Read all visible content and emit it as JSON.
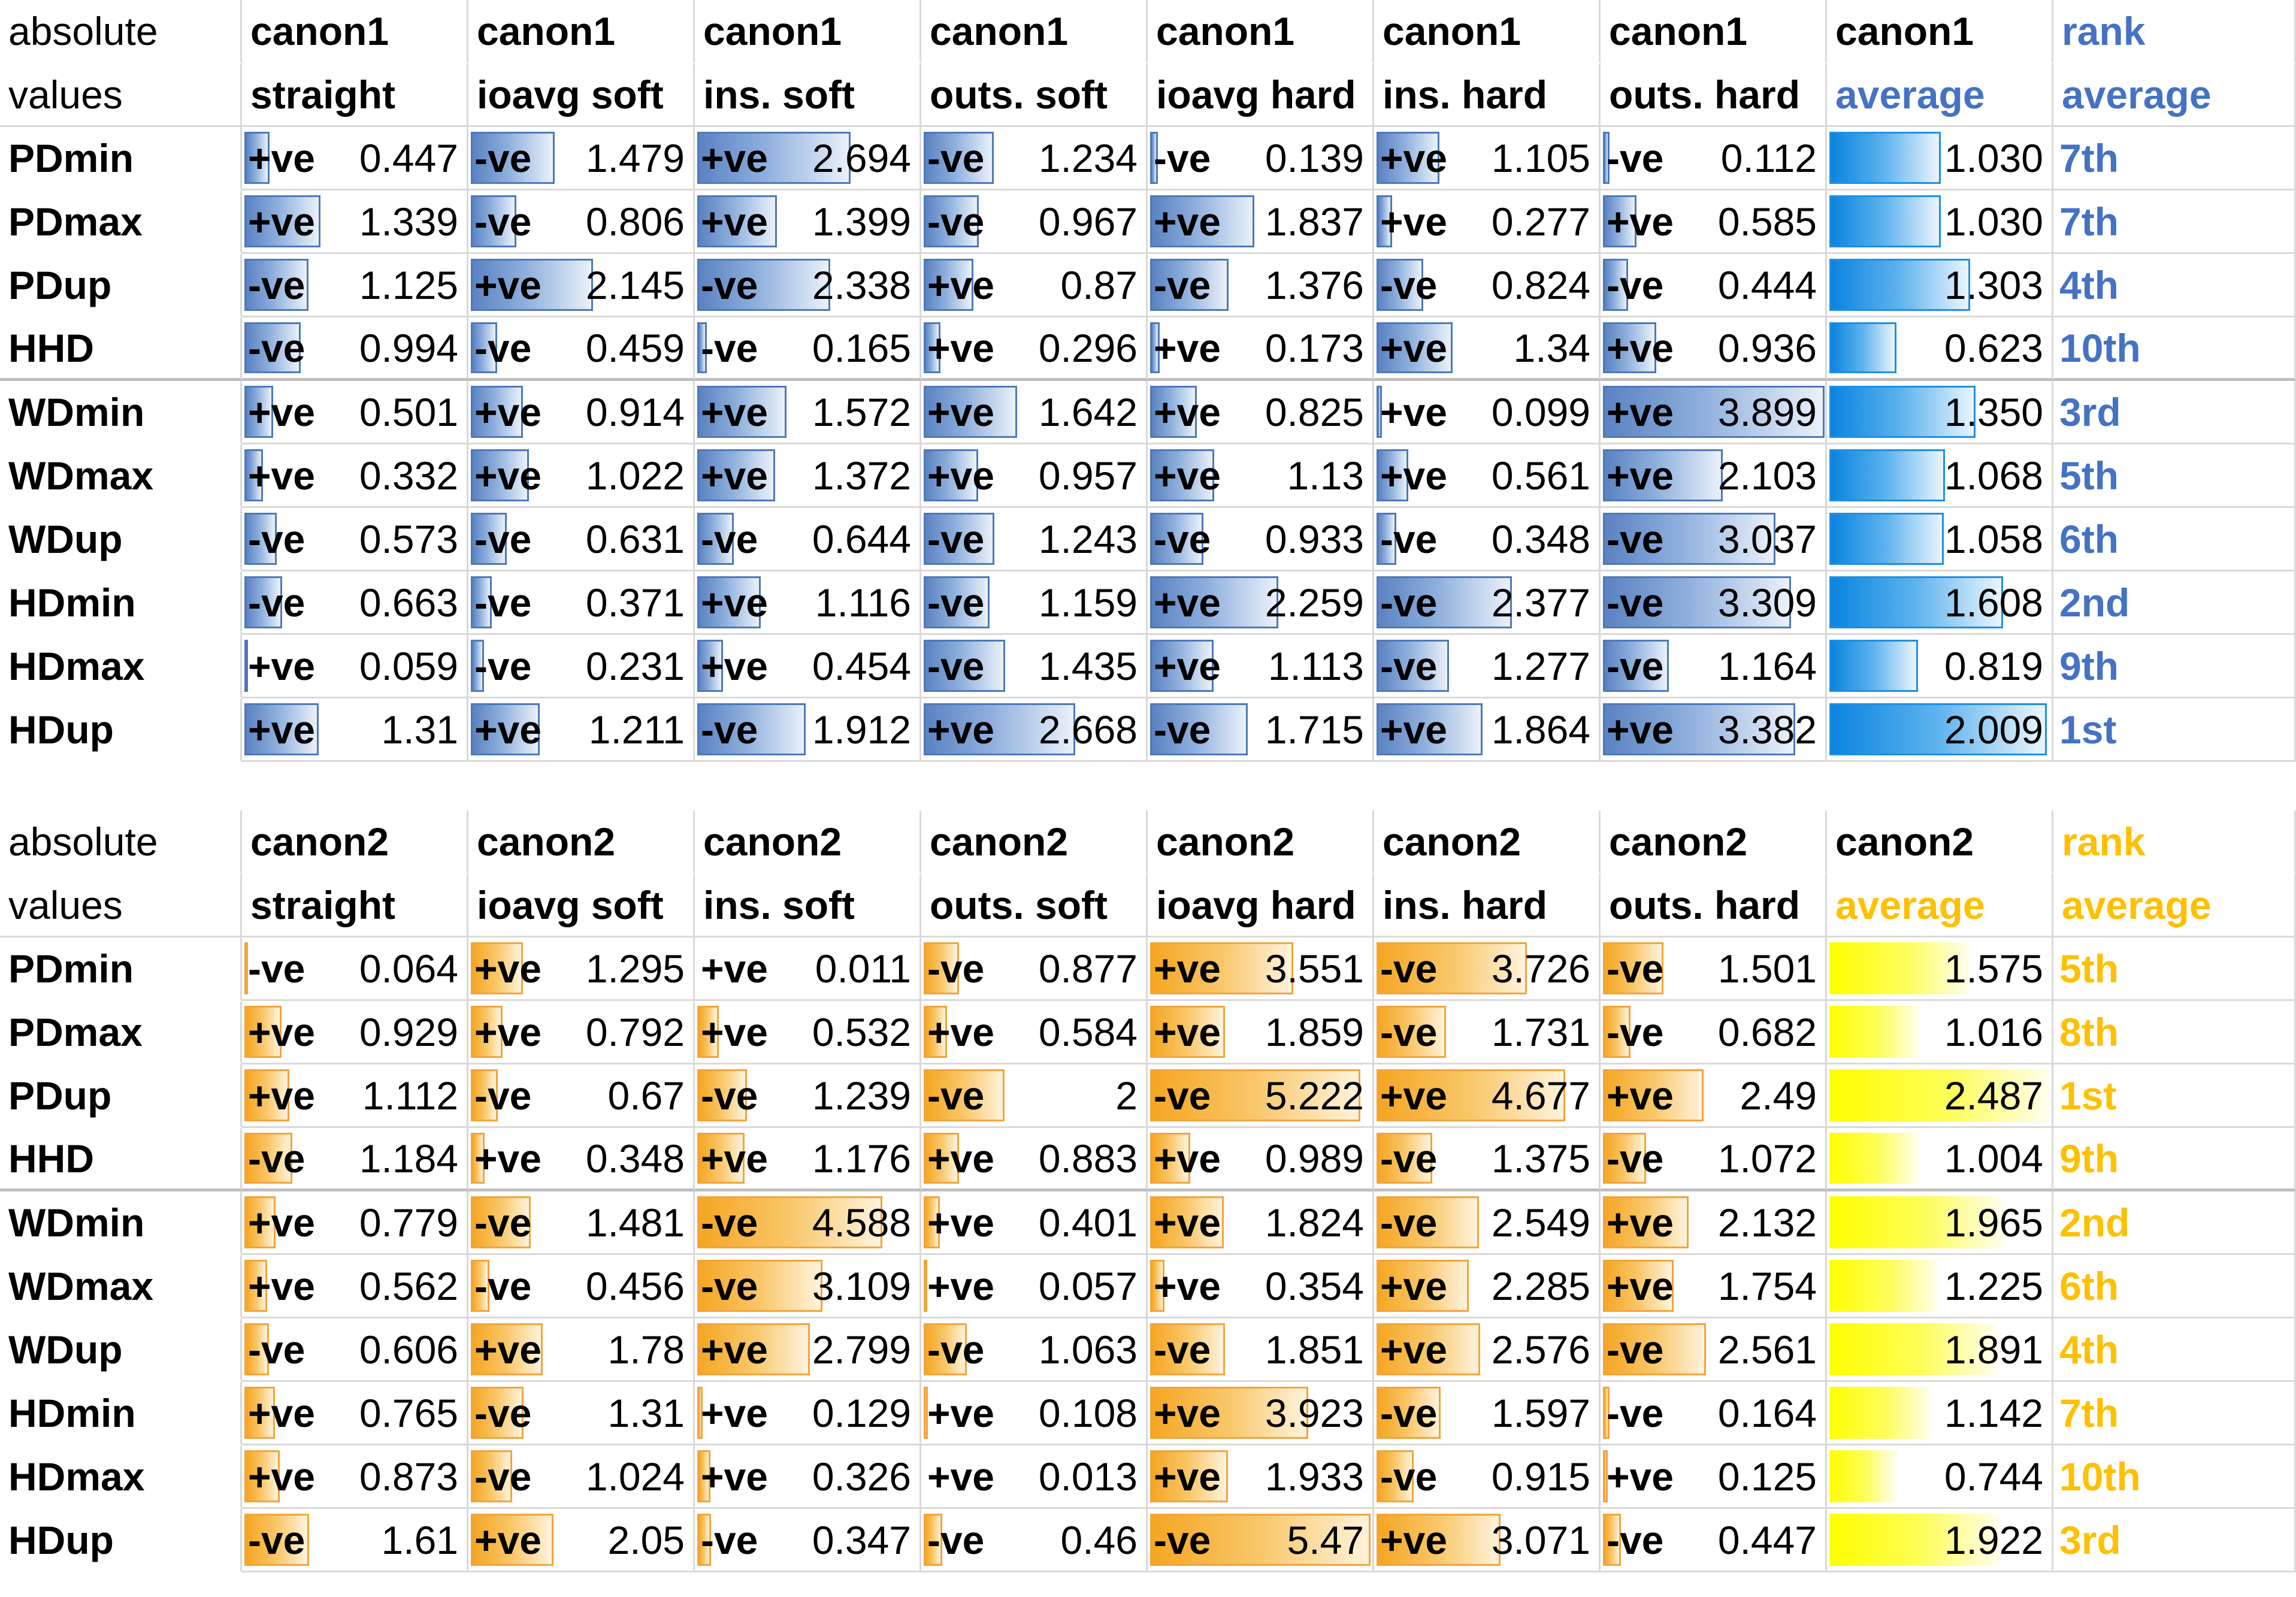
{
  "colors": {
    "table1_bar": "#5b82c2",
    "table1_avg_bar": "#0a84e0",
    "table1_accent": "#4472c4",
    "table2_bar": "#f5a623",
    "table2_avg_bar": "#ffff00",
    "table2_accent": "#ffc000"
  },
  "chart_data": [
    {
      "type": "table",
      "header_row1": [
        "absolute",
        "canon1",
        "canon1",
        "canon1",
        "canon1",
        "canon1",
        "canon1",
        "canon1",
        "canon1",
        "rank"
      ],
      "header_row2": [
        "values",
        "straight",
        "ioavg soft",
        "ins. soft",
        "outs. soft",
        "ioavg hard",
        "ins. hard",
        "outs. hard",
        "average",
        "average"
      ],
      "bar_max": 3.9,
      "avg_bar_max": 2.05,
      "rows": [
        {
          "label": "PDmin",
          "cells": [
            [
              "+ve",
              "0.447"
            ],
            [
              "-ve",
              "1.479"
            ],
            [
              "+ve",
              "2.694"
            ],
            [
              "-ve",
              "1.234"
            ],
            [
              "-ve",
              "0.139"
            ],
            [
              "+ve",
              "1.105"
            ],
            [
              "-ve",
              "0.112"
            ]
          ],
          "average": "1.030",
          "rank": "7th"
        },
        {
          "label": "PDmax",
          "cells": [
            [
              "+ve",
              "1.339"
            ],
            [
              "-ve",
              "0.806"
            ],
            [
              "+ve",
              "1.399"
            ],
            [
              "-ve",
              "0.967"
            ],
            [
              "+ve",
              "1.837"
            ],
            [
              "+ve",
              "0.277"
            ],
            [
              "+ve",
              "0.585"
            ]
          ],
          "average": "1.030",
          "rank": "7th"
        },
        {
          "label": "PDup",
          "cells": [
            [
              "-ve",
              "1.125"
            ],
            [
              "+ve",
              "2.145"
            ],
            [
              "-ve",
              "2.338"
            ],
            [
              "+ve",
              "0.87"
            ],
            [
              "-ve",
              "1.376"
            ],
            [
              "-ve",
              "0.824"
            ],
            [
              "-ve",
              "0.444"
            ]
          ],
          "average": "1.303",
          "rank": "4th"
        },
        {
          "label": "HHD",
          "cells": [
            [
              "-ve",
              "0.994"
            ],
            [
              "-ve",
              "0.459"
            ],
            [
              "-ve",
              "0.165"
            ],
            [
              "+ve",
              "0.296"
            ],
            [
              "+ve",
              "0.173"
            ],
            [
              "+ve",
              "1.34"
            ],
            [
              "+ve",
              "0.936"
            ]
          ],
          "average": "0.623",
          "rank": "10th"
        },
        {
          "label": "WDmin",
          "cells": [
            [
              "+ve",
              "0.501"
            ],
            [
              "+ve",
              "0.914"
            ],
            [
              "+ve",
              "1.572"
            ],
            [
              "+ve",
              "1.642"
            ],
            [
              "+ve",
              "0.825"
            ],
            [
              "+ve",
              "0.099"
            ],
            [
              "+ve",
              "3.899"
            ]
          ],
          "average": "1.350",
          "rank": "3rd"
        },
        {
          "label": "WDmax",
          "cells": [
            [
              "+ve",
              "0.332"
            ],
            [
              "+ve",
              "1.022"
            ],
            [
              "+ve",
              "1.372"
            ],
            [
              "+ve",
              "0.957"
            ],
            [
              "+ve",
              "1.13"
            ],
            [
              "+ve",
              "0.561"
            ],
            [
              "+ve",
              "2.103"
            ]
          ],
          "average": "1.068",
          "rank": "5th"
        },
        {
          "label": "WDup",
          "cells": [
            [
              "-ve",
              "0.573"
            ],
            [
              "-ve",
              "0.631"
            ],
            [
              "-ve",
              "0.644"
            ],
            [
              "-ve",
              "1.243"
            ],
            [
              "-ve",
              "0.933"
            ],
            [
              "-ve",
              "0.348"
            ],
            [
              "-ve",
              "3.037"
            ]
          ],
          "average": "1.058",
          "rank": "6th"
        },
        {
          "label": "HDmin",
          "cells": [
            [
              "-ve",
              "0.663"
            ],
            [
              "-ve",
              "0.371"
            ],
            [
              "+ve",
              "1.116"
            ],
            [
              "-ve",
              "1.159"
            ],
            [
              "+ve",
              "2.259"
            ],
            [
              "-ve",
              "2.377"
            ],
            [
              "-ve",
              "3.309"
            ]
          ],
          "average": "1.608",
          "rank": "2nd"
        },
        {
          "label": "HDmax",
          "cells": [
            [
              "+ve",
              "0.059"
            ],
            [
              "-ve",
              "0.231"
            ],
            [
              "+ve",
              "0.454"
            ],
            [
              "-ve",
              "1.435"
            ],
            [
              "+ve",
              "1.113"
            ],
            [
              "-ve",
              "1.277"
            ],
            [
              "-ve",
              "1.164"
            ]
          ],
          "average": "0.819",
          "rank": "9th"
        },
        {
          "label": "HDup",
          "cells": [
            [
              "+ve",
              "1.31"
            ],
            [
              "+ve",
              "1.211"
            ],
            [
              "-ve",
              "1.912"
            ],
            [
              "+ve",
              "2.668"
            ],
            [
              "-ve",
              "1.715"
            ],
            [
              "+ve",
              "1.864"
            ],
            [
              "+ve",
              "3.382"
            ]
          ],
          "average": "2.009",
          "rank": "1st"
        }
      ]
    },
    {
      "type": "table",
      "header_row1": [
        "absolute",
        "canon2",
        "canon2",
        "canon2",
        "canon2",
        "canon2",
        "canon2",
        "canon2",
        "canon2",
        "rank"
      ],
      "header_row2": [
        "values",
        "straight",
        "ioavg soft",
        "ins. soft",
        "outs. soft",
        "ioavg hard",
        "ins. hard",
        "outs. hard",
        "average",
        "average"
      ],
      "bar_max": 5.5,
      "avg_bar_max": 2.5,
      "rows": [
        {
          "label": "PDmin",
          "cells": [
            [
              "-ve",
              "0.064"
            ],
            [
              "+ve",
              "1.295"
            ],
            [
              "+ve",
              "0.011"
            ],
            [
              "-ve",
              "0.877"
            ],
            [
              "+ve",
              "3.551"
            ],
            [
              "-ve",
              "3.726"
            ],
            [
              "-ve",
              "1.501"
            ]
          ],
          "average": "1.575",
          "rank": "5th"
        },
        {
          "label": "PDmax",
          "cells": [
            [
              "+ve",
              "0.929"
            ],
            [
              "+ve",
              "0.792"
            ],
            [
              "+ve",
              "0.532"
            ],
            [
              "+ve",
              "0.584"
            ],
            [
              "+ve",
              "1.859"
            ],
            [
              "-ve",
              "1.731"
            ],
            [
              "-ve",
              "0.682"
            ]
          ],
          "average": "1.016",
          "rank": "8th"
        },
        {
          "label": "PDup",
          "cells": [
            [
              "+ve",
              "1.112"
            ],
            [
              "-ve",
              "0.67"
            ],
            [
              "-ve",
              "1.239"
            ],
            [
              "-ve",
              "2"
            ],
            [
              "-ve",
              "5.222"
            ],
            [
              "+ve",
              "4.677"
            ],
            [
              "+ve",
              "2.49"
            ]
          ],
          "average": "2.487",
          "rank": "1st"
        },
        {
          "label": "HHD",
          "cells": [
            [
              "-ve",
              "1.184"
            ],
            [
              "+ve",
              "0.348"
            ],
            [
              "+ve",
              "1.176"
            ],
            [
              "+ve",
              "0.883"
            ],
            [
              "+ve",
              "0.989"
            ],
            [
              "-ve",
              "1.375"
            ],
            [
              "-ve",
              "1.072"
            ]
          ],
          "average": "1.004",
          "rank": "9th"
        },
        {
          "label": "WDmin",
          "cells": [
            [
              "+ve",
              "0.779"
            ],
            [
              "-ve",
              "1.481"
            ],
            [
              "-ve",
              "4.588"
            ],
            [
              "+ve",
              "0.401"
            ],
            [
              "+ve",
              "1.824"
            ],
            [
              "-ve",
              "2.549"
            ],
            [
              "+ve",
              "2.132"
            ]
          ],
          "average": "1.965",
          "rank": "2nd"
        },
        {
          "label": "WDmax",
          "cells": [
            [
              "+ve",
              "0.562"
            ],
            [
              "-ve",
              "0.456"
            ],
            [
              "-ve",
              "3.109"
            ],
            [
              "+ve",
              "0.057"
            ],
            [
              "+ve",
              "0.354"
            ],
            [
              "+ve",
              "2.285"
            ],
            [
              "+ve",
              "1.754"
            ]
          ],
          "average": "1.225",
          "rank": "6th"
        },
        {
          "label": "WDup",
          "cells": [
            [
              "-ve",
              "0.606"
            ],
            [
              "+ve",
              "1.78"
            ],
            [
              "+ve",
              "2.799"
            ],
            [
              "-ve",
              "1.063"
            ],
            [
              "-ve",
              "1.851"
            ],
            [
              "+ve",
              "2.576"
            ],
            [
              "-ve",
              "2.561"
            ]
          ],
          "average": "1.891",
          "rank": "4th"
        },
        {
          "label": "HDmin",
          "cells": [
            [
              "+ve",
              "0.765"
            ],
            [
              "-ve",
              "1.31"
            ],
            [
              "+ve",
              "0.129"
            ],
            [
              "+ve",
              "0.108"
            ],
            [
              "+ve",
              "3.923"
            ],
            [
              "-ve",
              "1.597"
            ],
            [
              "-ve",
              "0.164"
            ]
          ],
          "average": "1.142",
          "rank": "7th"
        },
        {
          "label": "HDmax",
          "cells": [
            [
              "+ve",
              "0.873"
            ],
            [
              "-ve",
              "1.024"
            ],
            [
              "+ve",
              "0.326"
            ],
            [
              "+ve",
              "0.013"
            ],
            [
              "+ve",
              "1.933"
            ],
            [
              "-ve",
              "0.915"
            ],
            [
              "+ve",
              "0.125"
            ]
          ],
          "average": "0.744",
          "rank": "10th"
        },
        {
          "label": "HDup",
          "cells": [
            [
              "-ve",
              "1.61"
            ],
            [
              "+ve",
              "2.05"
            ],
            [
              "-ve",
              "0.347"
            ],
            [
              "-ve",
              "0.46"
            ],
            [
              "-ve",
              "5.47"
            ],
            [
              "+ve",
              "3.071"
            ],
            [
              "-ve",
              "0.447"
            ]
          ],
          "average": "1.922",
          "rank": "3rd"
        }
      ]
    }
  ]
}
